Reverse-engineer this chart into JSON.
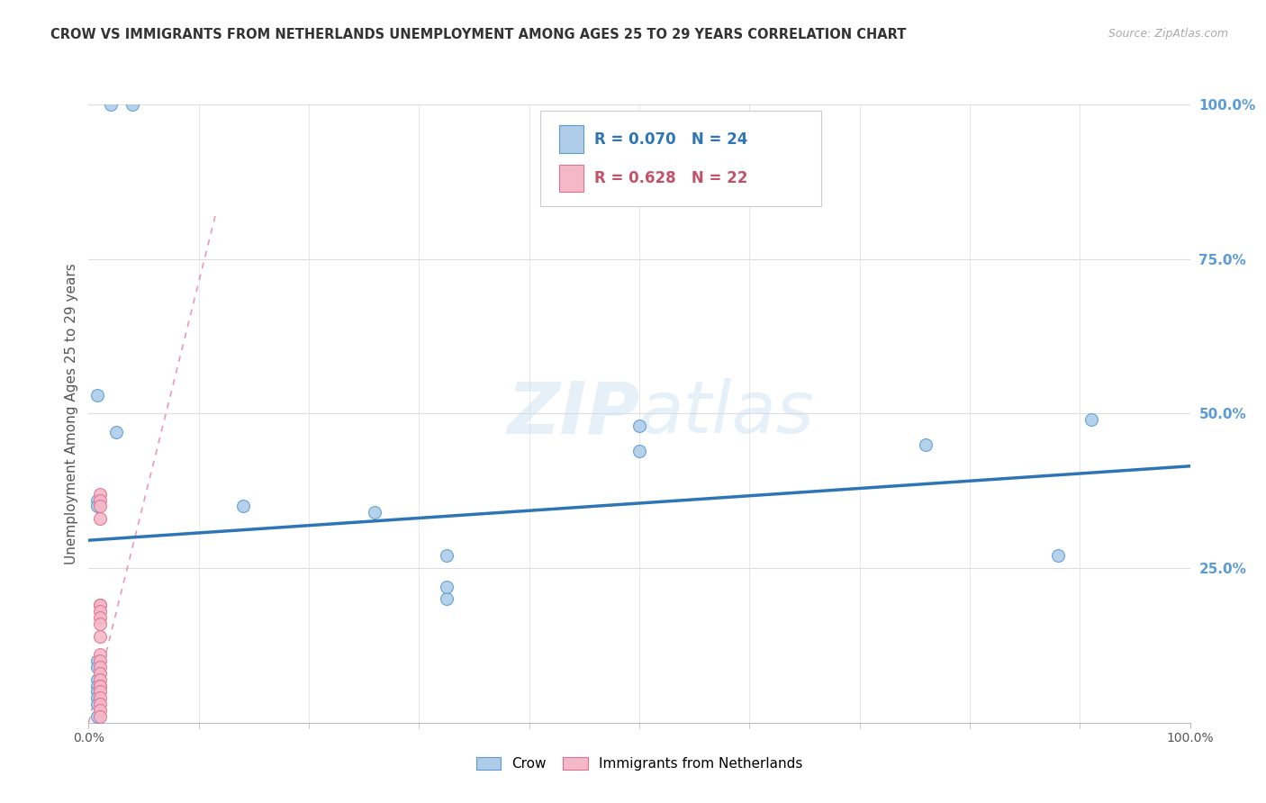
{
  "title": "CROW VS IMMIGRANTS FROM NETHERLANDS UNEMPLOYMENT AMONG AGES 25 TO 29 YEARS CORRELATION CHART",
  "source": "Source: ZipAtlas.com",
  "ylabel": "Unemployment Among Ages 25 to 29 years",
  "watermark": "ZIPatlas",
  "background_color": "#ffffff",
  "plot_bg_color": "#ffffff",
  "grid_color": "#dddddd",
  "title_color": "#333333",
  "source_color": "#aaaaaa",
  "right_axis_color": "#5b9bd5",
  "xlim": [
    0.0,
    1.0
  ],
  "ylim": [
    0.0,
    1.0
  ],
  "ytick_positions_right": [
    1.0,
    0.75,
    0.5,
    0.25
  ],
  "ytick_labels_right": [
    "100.0%",
    "75.0%",
    "50.0%",
    "25.0%"
  ],
  "legend": {
    "crow_r": "R = 0.070",
    "crow_n": "N = 24",
    "neth_r": "R = 0.628",
    "neth_n": "N = 22",
    "crow_color": "#aecce8",
    "neth_color": "#f4b8c8",
    "crow_text_color": "#2e75b6",
    "neth_text_color": "#c0536a"
  },
  "crow_scatter_x": [
    0.02,
    0.04,
    0.008,
    0.025,
    0.008,
    0.008,
    0.008,
    0.008,
    0.008,
    0.008,
    0.008,
    0.008,
    0.008,
    0.008,
    0.14,
    0.26,
    0.5,
    0.5,
    0.76,
    0.91,
    0.88,
    0.325,
    0.325,
    0.325
  ],
  "crow_scatter_y": [
    1.0,
    1.0,
    0.53,
    0.47,
    0.36,
    0.35,
    0.1,
    0.09,
    0.07,
    0.06,
    0.05,
    0.04,
    0.03,
    0.01,
    0.35,
    0.34,
    0.48,
    0.44,
    0.45,
    0.49,
    0.27,
    0.27,
    0.2,
    0.22
  ],
  "neth_scatter_x": [
    0.01,
    0.01,
    0.01,
    0.01,
    0.01,
    0.01,
    0.01,
    0.01,
    0.01,
    0.01,
    0.01,
    0.01,
    0.01,
    0.01,
    0.01,
    0.01,
    0.01,
    0.01,
    0.01,
    0.01,
    0.01,
    0.01
  ],
  "neth_scatter_y": [
    0.37,
    0.36,
    0.35,
    0.33,
    0.19,
    0.19,
    0.18,
    0.17,
    0.16,
    0.14,
    0.11,
    0.1,
    0.09,
    0.08,
    0.07,
    0.06,
    0.06,
    0.05,
    0.04,
    0.03,
    0.02,
    0.01
  ],
  "crow_trendline_x": [
    0.0,
    1.0
  ],
  "crow_trendline_y": [
    0.295,
    0.415
  ],
  "neth_trendline_x": [
    0.0,
    0.115
  ],
  "neth_trendline_y": [
    0.0,
    0.82
  ],
  "crow_line_color": "#2e75b6",
  "neth_line_color": "#e07090",
  "crow_scatter_color": "#aecce8",
  "neth_scatter_color": "#f4b8c8",
  "crow_edge_color": "#5b9bd5",
  "neth_edge_color": "#e07090",
  "marker_size": 100
}
